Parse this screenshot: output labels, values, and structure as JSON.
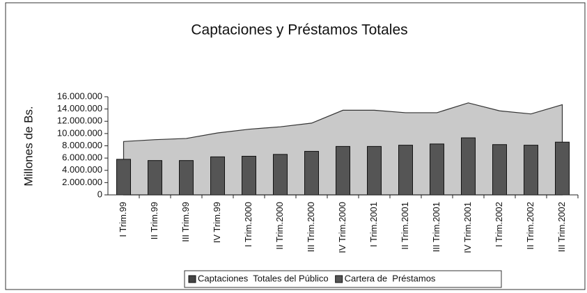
{
  "chart_data": {
    "type": "combo",
    "title": "Captaciones y Préstamos Totales",
    "ylabel": "Millones de Bs.",
    "categories": [
      "I Trim.99",
      "II Trim.99",
      "III Trim.99",
      "IV Trim.99",
      "I Trim.2000",
      "II Trim.2000",
      "III Trim.2000",
      "IV Trim.2000",
      "I Trim.2001",
      "II Trim.2001",
      "III Trim.2001",
      "IV Trim.2001",
      "I Trim.2002",
      "II Trim.2002",
      "III Trim.2002"
    ],
    "series": [
      {
        "name": "Captaciones  Totales del Público",
        "type": "area",
        "color": "#c9c9c9",
        "values": [
          8700000,
          9000000,
          9200000,
          10100000,
          10700000,
          11100000,
          11700000,
          13800000,
          13800000,
          13400000,
          13400000,
          15000000,
          13700000,
          13200000,
          14700000
        ]
      },
      {
        "name": "Cartera de  Préstamos",
        "type": "bar",
        "color": "#555555",
        "values": [
          5800000,
          5600000,
          5600000,
          6200000,
          6300000,
          6600000,
          7100000,
          7900000,
          7900000,
          8100000,
          8300000,
          9300000,
          8200000,
          8100000,
          8600000
        ]
      }
    ],
    "ylim": [
      0,
      16000000
    ],
    "yticks": [
      {
        "value": 0,
        "label": "0"
      },
      {
        "value": 2000000,
        "label": "2.000.000"
      },
      {
        "value": 4000000,
        "label": "4.000.000"
      },
      {
        "value": 6000000,
        "label": "6.000.000"
      },
      {
        "value": 8000000,
        "label": "8.000.000"
      },
      {
        "value": 10000000,
        "label": "10.000.000"
      },
      {
        "value": 12000000,
        "label": "12.000.000"
      },
      {
        "value": 14000000,
        "label": "14.000.000"
      },
      {
        "value": 16000000,
        "label": "16.000.000"
      }
    ],
    "legend": "bottom"
  }
}
